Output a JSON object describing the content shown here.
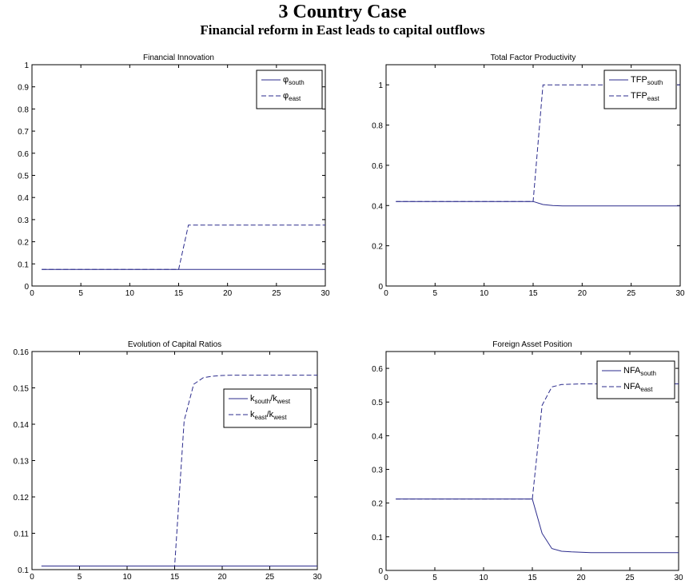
{
  "header": {
    "title": "3 Country Case",
    "subtitle": "Financial reform in East leads to capital outflows"
  },
  "colors": {
    "line": "#2b2b8c",
    "axis": "#000000"
  },
  "chart_data": [
    {
      "type": "line",
      "title": "Financial Innovation",
      "xlim": [
        0,
        30
      ],
      "ylim": [
        0,
        1
      ],
      "xticks": [
        "0",
        "5",
        "10",
        "15",
        "20",
        "25",
        "30"
      ],
      "yticks": [
        "0",
        "0.1",
        "0.2",
        "0.3",
        "0.4",
        "0.5",
        "0.6",
        "0.7",
        "0.8",
        "0.9",
        "1"
      ],
      "legend_position": "top-right",
      "series": [
        {
          "name": "φ",
          "sub": "south",
          "style": "solid",
          "x": [
            1,
            30
          ],
          "y": [
            0.075,
            0.075
          ]
        },
        {
          "name": "φ",
          "sub": "east",
          "style": "dashed",
          "x": [
            1,
            15,
            16,
            30
          ],
          "y": [
            0.075,
            0.075,
            0.275,
            0.275
          ]
        }
      ]
    },
    {
      "type": "line",
      "title": "Total Factor Productivity",
      "xlim": [
        0,
        30
      ],
      "ylim": [
        0,
        1.1
      ],
      "xticks": [
        "0",
        "5",
        "10",
        "15",
        "20",
        "25",
        "30"
      ],
      "yticks": [
        "0",
        "0.2",
        "0.4",
        "0.6",
        "0.8",
        "1"
      ],
      "legend_position": "top-right",
      "series": [
        {
          "name": "TFP",
          "sub": "south",
          "style": "solid",
          "x": [
            1,
            15,
            16,
            17,
            18,
            30
          ],
          "y": [
            0.42,
            0.42,
            0.405,
            0.4,
            0.398,
            0.398
          ]
        },
        {
          "name": "TFP",
          "sub": "east",
          "style": "dashed",
          "x": [
            1,
            15,
            16,
            30
          ],
          "y": [
            0.42,
            0.42,
            1.0,
            1.0
          ]
        }
      ]
    },
    {
      "type": "line",
      "title": "Evolution of Capital Ratios",
      "xlim": [
        0,
        30
      ],
      "ylim": [
        0.1,
        0.16
      ],
      "xticks": [
        "0",
        "5",
        "10",
        "15",
        "20",
        "25",
        "30"
      ],
      "yticks": [
        "0.1",
        "0.11",
        "0.12",
        "0.13",
        "0.14",
        "0.15",
        "0.16"
      ],
      "legend_position": "right",
      "series": [
        {
          "name": "k",
          "sub": "south",
          "name2": "/k",
          "sub2": "west",
          "style": "solid",
          "x": [
            1,
            30
          ],
          "y": [
            0.101,
            0.101
          ]
        },
        {
          "name": "k",
          "sub": "east",
          "name2": "/k",
          "sub2": "west",
          "style": "dashed",
          "x": [
            1,
            15,
            16,
            17,
            18,
            19,
            20,
            21,
            22,
            30
          ],
          "y": [
            0.101,
            0.101,
            0.141,
            0.151,
            0.1528,
            0.1532,
            0.1534,
            0.1535,
            0.1535,
            0.1535
          ]
        }
      ]
    },
    {
      "type": "line",
      "title": "Foreign Asset Position",
      "xlim": [
        0,
        30
      ],
      "ylim": [
        0,
        0.65
      ],
      "xticks": [
        "0",
        "5",
        "10",
        "15",
        "20",
        "25",
        "30"
      ],
      "yticks": [
        "0",
        "0.1",
        "0.2",
        "0.3",
        "0.4",
        "0.5",
        "0.6"
      ],
      "legend_position": "top-right",
      "series": [
        {
          "name": "NFA",
          "sub": "south",
          "style": "solid",
          "x": [
            1,
            15,
            16,
            17,
            18,
            19,
            20,
            21,
            22,
            30
          ],
          "y": [
            0.212,
            0.212,
            0.11,
            0.065,
            0.057,
            0.055,
            0.054,
            0.053,
            0.053,
            0.053
          ]
        },
        {
          "name": "NFA",
          "sub": "east",
          "style": "dashed",
          "x": [
            1,
            15,
            16,
            17,
            18,
            19,
            20,
            21,
            22,
            30
          ],
          "y": [
            0.212,
            0.212,
            0.49,
            0.545,
            0.552,
            0.553,
            0.554,
            0.554,
            0.554,
            0.554
          ]
        }
      ]
    }
  ]
}
